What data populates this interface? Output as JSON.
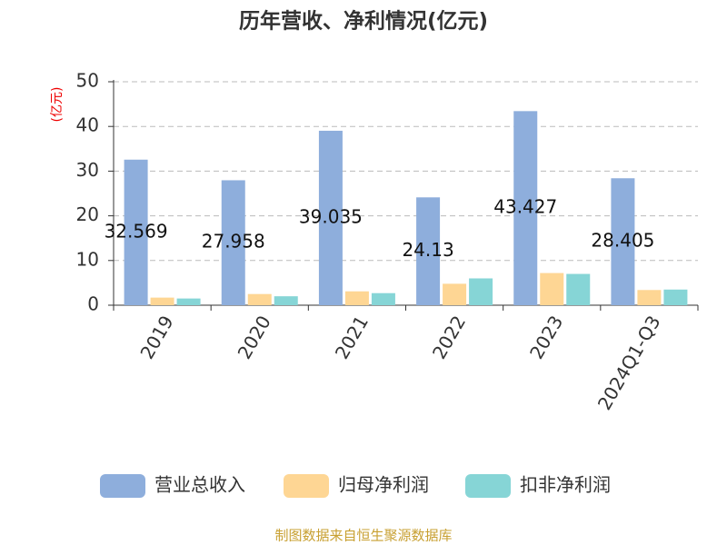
{
  "chart_data": {
    "type": "bar",
    "title": "历年营收、净利情况(亿元)",
    "y_label": "(亿元)",
    "source": "制图数据来自恒生聚源数据库",
    "categories": [
      "2019",
      "2020",
      "2021",
      "2022",
      "2023",
      "2024Q1-Q3"
    ],
    "series": [
      {
        "name": "营业总收入",
        "color": "#8eaedc",
        "values": [
          32.569,
          27.958,
          39.035,
          24.13,
          43.427,
          28.405
        ],
        "show_labels": true
      },
      {
        "name": "归母净利润",
        "color": "#fed694",
        "values": [
          1.7,
          2.5,
          3.1,
          4.8,
          7.2,
          3.4
        ]
      },
      {
        "name": "扣非净利润",
        "color": "#86d5d6",
        "values": [
          1.5,
          2.0,
          2.7,
          6.0,
          7.0,
          3.5
        ]
      }
    ],
    "ylim": [
      0,
      50
    ],
    "yticks": [
      0,
      10,
      20,
      30,
      40,
      50
    ],
    "grid": true,
    "legend": "bottom"
  }
}
